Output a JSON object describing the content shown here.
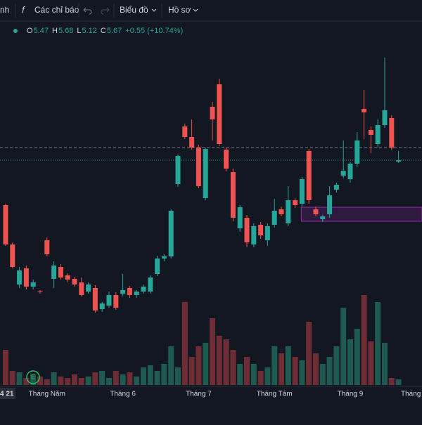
{
  "toolbar": {
    "items": [
      "nh",
      "Các chỉ báo",
      "Biểu đồ",
      "Hồ sơ"
    ]
  },
  "legend": {
    "fields": [
      {
        "label": "O",
        "value": "5.47"
      },
      {
        "label": "H",
        "value": "5.68"
      },
      {
        "label": "L",
        "value": "5.12"
      },
      {
        "label": "C",
        "value": "5.67"
      }
    ],
    "change": "+0.55 (+10.74%)"
  },
  "chart_data": {
    "type": "candlestick",
    "categories": [
      null,
      null,
      null,
      null,
      null,
      null,
      "Tháng Năm",
      null,
      null,
      null,
      null,
      null,
      null,
      null,
      null,
      null,
      null,
      "Tháng 6",
      null,
      null,
      null,
      null,
      null,
      null,
      null,
      null,
      null,
      null,
      "Tháng 7",
      null,
      null,
      null,
      null,
      null,
      null,
      null,
      null,
      null,
      null,
      "Tháng Tám",
      null,
      null,
      null,
      null,
      null,
      null,
      null,
      null,
      null,
      null,
      "Tháng 9",
      null,
      null,
      null,
      null,
      null,
      null,
      null
    ],
    "edge_labels": [
      "4 21",
      "Tháng"
    ],
    "open": [
      4.98,
      4.42,
      3.85,
      4.08,
      3.82,
      3.75,
      4.48,
      3.93,
      4.1,
      3.98,
      3.93,
      3.88,
      3.75,
      3.8,
      3.5,
      3.55,
      3.7,
      3.72,
      3.8,
      3.7,
      3.75,
      3.75,
      4.0,
      4.22,
      4.25,
      5.28,
      6.1,
      5.95,
      5.8,
      5.08,
      6.38,
      6.7,
      5.77,
      5.45,
      4.65,
      4.8,
      4.42,
      4.7,
      4.48,
      4.7,
      4.92,
      4.72,
      5.05,
      5.0,
      5.75,
      4.92,
      4.78,
      4.85,
      5.2,
      5.4,
      5.35,
      5.57,
      6.35,
      6.05,
      5.85,
      6.12,
      6.22,
      5.6
    ],
    "high": [
      5.0,
      4.45,
      4.1,
      4.12,
      3.92,
      3.77,
      4.52,
      4.18,
      4.14,
      4.01,
      3.96,
      3.95,
      3.88,
      3.84,
      3.6,
      3.75,
      3.74,
      4.0,
      3.83,
      3.77,
      3.85,
      3.98,
      4.26,
      4.28,
      4.92,
      5.7,
      6.14,
      6.2,
      5.84,
      5.8,
      6.45,
      6.78,
      5.8,
      5.5,
      4.98,
      4.84,
      4.72,
      4.74,
      4.72,
      5.07,
      4.96,
      5.25,
      5.08,
      5.38,
      5.78,
      4.96,
      4.84,
      5.25,
      5.3,
      5.9,
      5.6,
      6.02,
      6.62,
      6.1,
      6.2,
      7.08,
      6.26,
      5.75
    ],
    "low": [
      4.4,
      4.08,
      3.8,
      3.78,
      3.78,
      3.72,
      4.25,
      3.8,
      3.92,
      3.88,
      3.82,
      3.68,
      3.72,
      3.45,
      3.46,
      3.52,
      3.49,
      3.68,
      3.66,
      3.66,
      3.72,
      3.72,
      3.97,
      4.18,
      4.22,
      5.24,
      5.92,
      5.77,
      5.22,
      5.05,
      5.9,
      5.82,
      5.46,
      4.75,
      4.6,
      4.38,
      4.38,
      4.5,
      4.4,
      4.66,
      4.82,
      4.68,
      4.94,
      4.96,
      5.0,
      4.82,
      4.74,
      4.8,
      5.16,
      5.36,
      5.3,
      5.52,
      5.92,
      5.72,
      5.8,
      6.08,
      5.76,
      5.58
    ],
    "close": [
      4.42,
      4.1,
      4.05,
      3.82,
      3.88,
      3.74,
      4.28,
      4.12,
      3.95,
      3.92,
      3.85,
      3.7,
      3.85,
      3.48,
      3.58,
      3.7,
      3.52,
      3.77,
      3.7,
      3.75,
      3.82,
      3.95,
      4.22,
      4.25,
      4.9,
      5.68,
      5.95,
      5.8,
      5.25,
      5.78,
      6.2,
      5.85,
      5.5,
      4.8,
      4.95,
      4.45,
      4.68,
      4.55,
      4.68,
      4.9,
      4.85,
      5.05,
      4.98,
      5.35,
      5.05,
      4.85,
      4.82,
      5.12,
      5.27,
      5.47,
      5.57,
      5.9,
      6.3,
      5.98,
      6.12,
      6.33,
      5.8,
      5.62
    ],
    "volume": [
      50,
      20,
      18,
      10,
      15,
      12,
      8,
      18,
      12,
      10,
      15,
      10,
      12,
      18,
      20,
      10,
      20,
      15,
      18,
      12,
      25,
      28,
      20,
      30,
      55,
      25,
      118,
      40,
      55,
      60,
      95,
      70,
      65,
      50,
      30,
      40,
      30,
      20,
      25,
      55,
      45,
      55,
      40,
      35,
      90,
      45,
      30,
      40,
      55,
      110,
      65,
      80,
      128,
      62,
      118,
      60,
      10,
      8
    ],
    "price_lines": [
      5.8,
      5.62
    ],
    "zone_ylim": [
      4.75,
      4.95
    ],
    "up_color": "#26a69a",
    "down_color": "#ef5350"
  }
}
